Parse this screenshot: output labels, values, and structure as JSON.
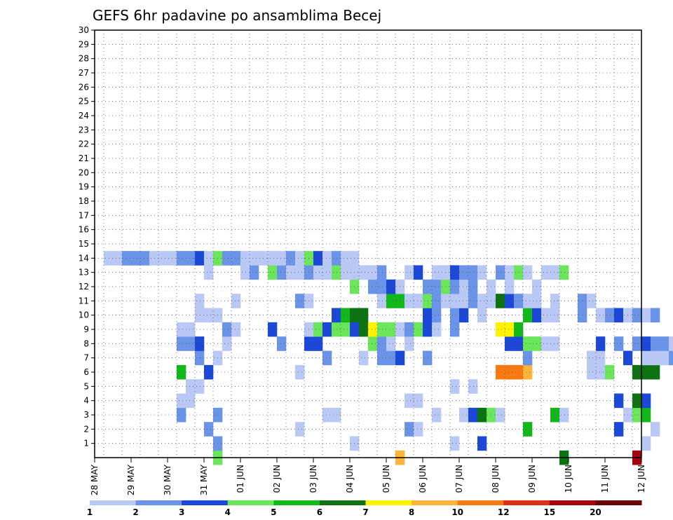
{
  "chart_data": {
    "type": "heatmap",
    "title": "GEFS 6hr padavine po ansamblima Becej",
    "x_labels": [
      "28 MAY",
      "29 MAY",
      "30 MAY",
      "31 MAY",
      "01 JUN",
      "02 JUN",
      "03 JUN",
      "04 JUN",
      "05 JUN",
      "06 JUN",
      "07 JUN",
      "08 JUN",
      "09 JUN",
      "10 JUN",
      "11 JUN",
      "12 JUN"
    ],
    "y_ticks": [
      1,
      2,
      3,
      4,
      5,
      6,
      7,
      8,
      9,
      10,
      11,
      12,
      13,
      14,
      15,
      16,
      17,
      18,
      19,
      20,
      21,
      22,
      23,
      24,
      25,
      26,
      27,
      28,
      29,
      30
    ],
    "y_range": [
      0,
      30
    ],
    "x_steps": 60,
    "grid": true,
    "colorbar": {
      "labels": [
        "1",
        "2",
        "3",
        "4",
        "5",
        "6",
        "7",
        "8",
        "10",
        "12",
        "15",
        "20"
      ],
      "colors": [
        "#b9c8f4",
        "#6b93e8",
        "#1b48d6",
        "#6be55a",
        "#10b81a",
        "#0c7212",
        "#fff200",
        "#fcb43a",
        "#f97a10",
        "#dc3018",
        "#a4040a",
        "#6a0205"
      ]
    },
    "cells": [
      [
        13,
        0,
        3
      ],
      [
        33,
        0,
        7
      ],
      [
        51,
        0,
        5
      ],
      [
        59,
        0,
        10
      ],
      [
        79,
        0,
        0
      ],
      [
        80,
        0,
        3
      ],
      [
        93,
        0,
        0
      ],
      [
        110,
        0,
        0
      ],
      [
        116,
        0,
        1
      ],
      [
        13,
        1,
        1
      ],
      [
        28,
        1,
        0
      ],
      [
        39,
        1,
        0
      ],
      [
        42,
        1,
        2
      ],
      [
        60,
        1,
        0
      ],
      [
        71,
        1,
        2
      ],
      [
        77,
        1,
        1
      ],
      [
        79,
        1,
        2
      ],
      [
        88,
        1,
        0
      ],
      [
        106,
        1,
        0
      ],
      [
        12,
        2,
        1
      ],
      [
        22,
        2,
        0
      ],
      [
        34,
        2,
        1
      ],
      [
        35,
        2,
        0
      ],
      [
        47,
        2,
        4
      ],
      [
        57,
        2,
        2
      ],
      [
        61,
        2,
        0
      ],
      [
        67,
        2,
        2
      ],
      [
        82,
        2,
        0
      ],
      [
        90,
        2,
        0
      ],
      [
        98,
        2,
        2
      ],
      [
        9,
        3,
        1
      ],
      [
        13,
        3,
        1
      ],
      [
        25,
        3,
        0
      ],
      [
        26,
        3,
        0
      ],
      [
        37,
        3,
        0
      ],
      [
        40,
        3,
        0
      ],
      [
        41,
        3,
        2
      ],
      [
        42,
        3,
        5
      ],
      [
        43,
        3,
        3
      ],
      [
        44,
        3,
        0
      ],
      [
        50,
        3,
        4
      ],
      [
        51,
        3,
        0
      ],
      [
        58,
        3,
        0
      ],
      [
        59,
        3,
        3
      ],
      [
        60,
        3,
        4
      ],
      [
        83,
        3,
        1
      ],
      [
        93,
        3,
        0
      ],
      [
        94,
        3,
        0
      ],
      [
        9,
        4,
        0
      ],
      [
        10,
        4,
        0
      ],
      [
        34,
        4,
        0
      ],
      [
        35,
        4,
        0
      ],
      [
        57,
        4,
        2
      ],
      [
        59,
        4,
        5
      ],
      [
        60,
        4,
        2
      ],
      [
        66,
        4,
        7
      ],
      [
        81,
        4,
        3
      ],
      [
        82,
        4,
        0
      ],
      [
        10,
        5,
        0
      ],
      [
        11,
        5,
        0
      ],
      [
        39,
        5,
        0
      ],
      [
        41,
        5,
        0
      ],
      [
        67,
        5,
        0
      ],
      [
        9,
        6,
        4
      ],
      [
        12,
        6,
        2
      ],
      [
        22,
        6,
        0
      ],
      [
        44,
        6,
        8
      ],
      [
        45,
        6,
        8
      ],
      [
        46,
        6,
        8
      ],
      [
        47,
        6,
        7
      ],
      [
        54,
        6,
        0
      ],
      [
        55,
        6,
        0
      ],
      [
        56,
        6,
        3
      ],
      [
        59,
        6,
        5
      ],
      [
        60,
        6,
        5
      ],
      [
        61,
        6,
        5
      ],
      [
        64,
        6,
        2
      ],
      [
        66,
        6,
        6
      ],
      [
        73,
        6,
        3
      ],
      [
        74,
        6,
        4
      ],
      [
        90,
        6,
        1
      ],
      [
        11,
        7,
        1
      ],
      [
        13,
        7,
        0
      ],
      [
        25,
        7,
        1
      ],
      [
        29,
        7,
        0
      ],
      [
        31,
        7,
        1
      ],
      [
        32,
        7,
        1
      ],
      [
        33,
        7,
        2
      ],
      [
        36,
        7,
        1
      ],
      [
        47,
        7,
        1
      ],
      [
        54,
        7,
        0
      ],
      [
        55,
        7,
        0
      ],
      [
        58,
        7,
        2
      ],
      [
        60,
        7,
        0
      ],
      [
        61,
        7,
        0
      ],
      [
        62,
        7,
        0
      ],
      [
        63,
        7,
        1
      ],
      [
        64,
        7,
        2
      ],
      [
        66,
        7,
        0
      ],
      [
        67,
        7,
        1
      ],
      [
        85,
        7,
        2
      ],
      [
        86,
        7,
        0
      ],
      [
        87,
        7,
        2
      ],
      [
        88,
        7,
        2
      ],
      [
        9,
        8,
        1
      ],
      [
        10,
        8,
        1
      ],
      [
        11,
        8,
        2
      ],
      [
        14,
        8,
        0
      ],
      [
        20,
        8,
        1
      ],
      [
        23,
        8,
        2
      ],
      [
        24,
        8,
        2
      ],
      [
        30,
        8,
        3
      ],
      [
        31,
        8,
        1
      ],
      [
        32,
        8,
        0
      ],
      [
        34,
        8,
        0
      ],
      [
        45,
        8,
        2
      ],
      [
        46,
        8,
        2
      ],
      [
        47,
        8,
        3
      ],
      [
        48,
        8,
        3
      ],
      [
        49,
        8,
        0
      ],
      [
        50,
        8,
        0
      ],
      [
        55,
        8,
        2
      ],
      [
        57,
        8,
        1
      ],
      [
        59,
        8,
        1
      ],
      [
        60,
        8,
        2
      ],
      [
        61,
        8,
        1
      ],
      [
        62,
        8,
        1
      ],
      [
        63,
        8,
        0
      ],
      [
        64,
        8,
        0
      ],
      [
        9,
        9,
        0
      ],
      [
        10,
        9,
        0
      ],
      [
        14,
        9,
        1
      ],
      [
        15,
        9,
        0
      ],
      [
        19,
        9,
        2
      ],
      [
        23,
        9,
        0
      ],
      [
        24,
        9,
        3
      ],
      [
        25,
        9,
        2
      ],
      [
        26,
        9,
        3
      ],
      [
        27,
        9,
        3
      ],
      [
        28,
        9,
        2
      ],
      [
        29,
        9,
        5
      ],
      [
        30,
        9,
        6
      ],
      [
        31,
        9,
        3
      ],
      [
        32,
        9,
        3
      ],
      [
        33,
        9,
        0
      ],
      [
        34,
        9,
        1
      ],
      [
        35,
        9,
        3
      ],
      [
        36,
        9,
        2
      ],
      [
        37,
        9,
        0
      ],
      [
        39,
        9,
        1
      ],
      [
        44,
        9,
        6
      ],
      [
        45,
        9,
        6
      ],
      [
        46,
        9,
        4
      ],
      [
        11,
        10,
        0
      ],
      [
        12,
        10,
        0
      ],
      [
        13,
        10,
        0
      ],
      [
        26,
        10,
        2
      ],
      [
        27,
        10,
        4
      ],
      [
        28,
        10,
        5
      ],
      [
        29,
        10,
        5
      ],
      [
        36,
        10,
        2
      ],
      [
        37,
        10,
        1
      ],
      [
        39,
        10,
        1
      ],
      [
        40,
        10,
        2
      ],
      [
        42,
        10,
        0
      ],
      [
        47,
        10,
        4
      ],
      [
        48,
        10,
        2
      ],
      [
        49,
        10,
        0
      ],
      [
        50,
        10,
        0
      ],
      [
        53,
        10,
        1
      ],
      [
        55,
        10,
        0
      ],
      [
        56,
        10,
        1
      ],
      [
        57,
        10,
        2
      ],
      [
        58,
        10,
        0
      ],
      [
        59,
        10,
        1
      ],
      [
        60,
        10,
        0
      ],
      [
        61,
        10,
        1
      ],
      [
        11,
        11,
        0
      ],
      [
        15,
        11,
        0
      ],
      [
        22,
        11,
        1
      ],
      [
        23,
        11,
        0
      ],
      [
        31,
        11,
        0
      ],
      [
        32,
        11,
        4
      ],
      [
        33,
        11,
        4
      ],
      [
        34,
        11,
        0
      ],
      [
        35,
        11,
        0
      ],
      [
        36,
        11,
        3
      ],
      [
        37,
        11,
        1
      ],
      [
        38,
        11,
        0
      ],
      [
        39,
        11,
        0
      ],
      [
        40,
        11,
        0
      ],
      [
        41,
        11,
        1
      ],
      [
        42,
        11,
        0
      ],
      [
        43,
        11,
        0
      ],
      [
        44,
        11,
        5
      ],
      [
        45,
        11,
        2
      ],
      [
        46,
        11,
        1
      ],
      [
        47,
        11,
        0
      ],
      [
        48,
        11,
        0
      ],
      [
        50,
        11,
        0
      ],
      [
        53,
        11,
        1
      ],
      [
        54,
        11,
        0
      ],
      [
        28,
        12,
        3
      ],
      [
        30,
        12,
        1
      ],
      [
        31,
        12,
        1
      ],
      [
        32,
        12,
        2
      ],
      [
        33,
        12,
        0
      ],
      [
        36,
        12,
        1
      ],
      [
        37,
        12,
        1
      ],
      [
        38,
        12,
        3
      ],
      [
        39,
        12,
        1
      ],
      [
        40,
        12,
        0
      ],
      [
        41,
        12,
        1
      ],
      [
        43,
        12,
        0
      ],
      [
        45,
        12,
        0
      ],
      [
        48,
        12,
        0
      ],
      [
        12,
        13,
        0
      ],
      [
        16,
        13,
        0
      ],
      [
        17,
        13,
        1
      ],
      [
        19,
        13,
        3
      ],
      [
        20,
        13,
        1
      ],
      [
        21,
        13,
        0
      ],
      [
        22,
        13,
        0
      ],
      [
        23,
        13,
        1
      ],
      [
        24,
        13,
        0
      ],
      [
        25,
        13,
        0
      ],
      [
        26,
        13,
        3
      ],
      [
        27,
        13,
        0
      ],
      [
        28,
        13,
        0
      ],
      [
        29,
        13,
        0
      ],
      [
        30,
        13,
        0
      ],
      [
        31,
        13,
        1
      ],
      [
        34,
        13,
        0
      ],
      [
        35,
        13,
        2
      ],
      [
        37,
        13,
        0
      ],
      [
        38,
        13,
        0
      ],
      [
        39,
        13,
        2
      ],
      [
        40,
        13,
        1
      ],
      [
        41,
        13,
        1
      ],
      [
        42,
        13,
        0
      ],
      [
        44,
        13,
        1
      ],
      [
        45,
        13,
        0
      ],
      [
        46,
        13,
        3
      ],
      [
        47,
        13,
        0
      ],
      [
        49,
        13,
        0
      ],
      [
        50,
        13,
        0
      ],
      [
        51,
        13,
        3
      ],
      [
        1,
        14,
        0
      ],
      [
        2,
        14,
        0
      ],
      [
        3,
        14,
        1
      ],
      [
        4,
        14,
        1
      ],
      [
        5,
        14,
        1
      ],
      [
        6,
        14,
        0
      ],
      [
        7,
        14,
        0
      ],
      [
        8,
        14,
        0
      ],
      [
        9,
        14,
        1
      ],
      [
        10,
        14,
        1
      ],
      [
        11,
        14,
        2
      ],
      [
        12,
        14,
        0
      ],
      [
        13,
        14,
        3
      ],
      [
        14,
        14,
        1
      ],
      [
        15,
        14,
        1
      ],
      [
        16,
        14,
        0
      ],
      [
        17,
        14,
        0
      ],
      [
        18,
        14,
        0
      ],
      [
        19,
        14,
        0
      ],
      [
        20,
        14,
        0
      ],
      [
        21,
        14,
        1
      ],
      [
        22,
        14,
        0
      ],
      [
        23,
        14,
        3
      ],
      [
        24,
        14,
        2
      ],
      [
        25,
        14,
        0
      ],
      [
        26,
        14,
        1
      ],
      [
        27,
        14,
        0
      ],
      [
        28,
        14,
        0
      ]
    ]
  }
}
